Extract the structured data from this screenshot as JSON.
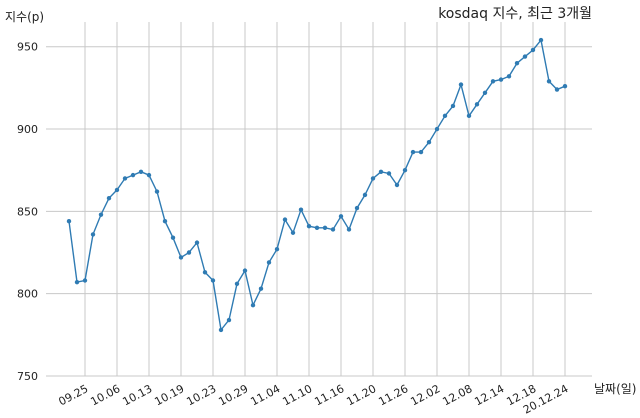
{
  "chart_data": {
    "type": "line",
    "title": "kosdaq 지수, 최근 3개월",
    "ylabel": "지수(p)",
    "xlabel": "날짜(일)",
    "ylim": [
      750,
      965
    ],
    "yticks": [
      750,
      800,
      850,
      900,
      950
    ],
    "grid": true,
    "x_tick_labels": [
      "09.25",
      "10.06",
      "10.13",
      "10.19",
      "10.23",
      "10.29",
      "11.04",
      "11.10",
      "11.16",
      "11.20",
      "11.26",
      "12.02",
      "12.08",
      "12.14",
      "12.18",
      "20.12.24"
    ],
    "x_tick_index": [
      2,
      6,
      10,
      14,
      18,
      22,
      26,
      30,
      34,
      38,
      42,
      46,
      50,
      54,
      58,
      62
    ],
    "series": [
      {
        "color": "#2f7bb3",
        "values": [
          844,
          807,
          808,
          836,
          848,
          858,
          863,
          870,
          872,
          874,
          872,
          862,
          844,
          834,
          822,
          825,
          831,
          813,
          808,
          778,
          784,
          806,
          814,
          793,
          803,
          819,
          827,
          845,
          837,
          851,
          841,
          840,
          840,
          839,
          847,
          839,
          852,
          860,
          870,
          874,
          873,
          866,
          875,
          886,
          886,
          892,
          900,
          908,
          914,
          927,
          908,
          915,
          922,
          929,
          930,
          932,
          940,
          944,
          948,
          954,
          929,
          924,
          926
        ]
      }
    ]
  }
}
